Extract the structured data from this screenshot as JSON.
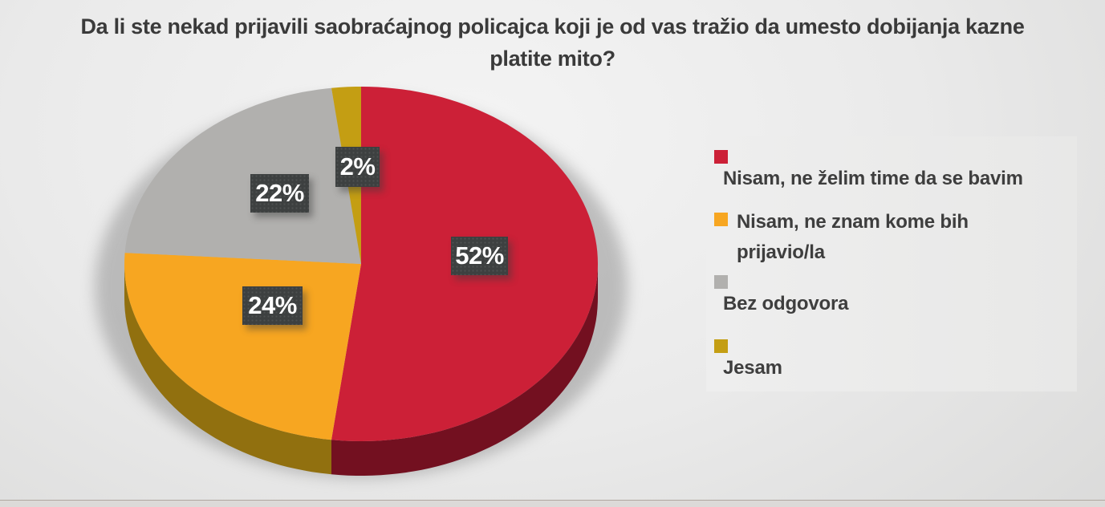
{
  "chart_data": {
    "type": "pie",
    "is_3d": true,
    "title": "Da li ste nekad prijavili saobraćajnog policajca koji je od vas tražio da umesto dobijanja kazne platite mito?",
    "unit": "%",
    "start_angle_deg": 0,
    "direction": "clockwise",
    "legend_position": "right",
    "slices": [
      {
        "label": "Nisam, ne želim time da se bavim",
        "value": 52,
        "pct_label": "52%",
        "color": "#cc2037",
        "side_color": "#731020"
      },
      {
        "label": "Nisam, ne znam kome bih prijavio/la",
        "value": 24,
        "pct_label": "24%",
        "color": "#f7a621",
        "side_color": "#91700f"
      },
      {
        "label": "Bez odgovora",
        "value": 22,
        "pct_label": "22%",
        "color": "#b1b0ae",
        "side_color": "#8d8c8a"
      },
      {
        "label": "Jesam",
        "value": 2,
        "pct_label": "2%",
        "color": "#c49e13",
        "side_color": "#8f7410"
      }
    ],
    "colors": {
      "label_box_bg": "#3d4040",
      "label_text": "#ffffff",
      "title_text": "#3a3a3a",
      "legend_text": "#3e3e3e",
      "legend_panel_bg": "#ebebea"
    }
  }
}
